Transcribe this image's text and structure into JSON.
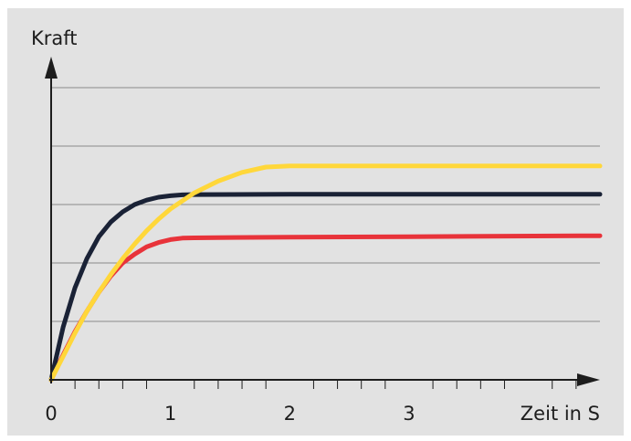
{
  "chart_data": {
    "type": "line",
    "title": "",
    "ylabel": "Kraft",
    "xlabel": "Zeit in S",
    "xlim": [
      0,
      4.6
    ],
    "ylim": [
      0,
      1.0
    ],
    "grid": true,
    "x_ticks": [
      {
        "value": 0,
        "label": "0"
      },
      {
        "value": 1,
        "label": "1"
      },
      {
        "value": 2,
        "label": "2"
      },
      {
        "value": 3,
        "label": "3"
      }
    ],
    "minor_x_ticks": [
      0.2,
      0.4,
      0.6,
      0.8,
      1.2,
      1.4,
      1.6,
      1.8,
      2.2,
      2.4,
      2.6,
      2.8,
      3.2,
      3.4,
      3.6,
      3.8,
      4.2,
      4.4
    ],
    "y_grid": [
      0.2,
      0.4,
      0.6,
      0.8
    ],
    "series": [
      {
        "color": "#e8333a",
        "x": [
          0,
          0.1,
          0.2,
          0.3,
          0.4,
          0.5,
          0.6,
          0.7,
          0.8,
          0.9,
          1.0,
          1.1,
          1.2,
          1.4,
          2.0,
          3.0,
          4.6
        ],
        "y": [
          0,
          0.085,
          0.165,
          0.235,
          0.3,
          0.355,
          0.4,
          0.43,
          0.455,
          0.47,
          0.48,
          0.485,
          0.486,
          0.487,
          0.488,
          0.49,
          0.493
        ]
      },
      {
        "color": "#1a2236",
        "x": [
          0,
          0.1,
          0.2,
          0.3,
          0.4,
          0.5,
          0.6,
          0.7,
          0.8,
          0.9,
          1.0,
          1.1,
          1.2,
          2.0,
          3.0,
          4.6
        ],
        "y": [
          0,
          0.18,
          0.315,
          0.415,
          0.49,
          0.54,
          0.575,
          0.6,
          0.615,
          0.625,
          0.63,
          0.633,
          0.634,
          0.635,
          0.635,
          0.635
        ]
      },
      {
        "color": "#ffd73a",
        "x": [
          0,
          0.1,
          0.2,
          0.3,
          0.4,
          0.5,
          0.6,
          0.7,
          0.8,
          0.9,
          1.0,
          1.2,
          1.4,
          1.6,
          1.8,
          2.0,
          2.5,
          3.0,
          4.6
        ],
        "y": [
          0,
          0.08,
          0.16,
          0.235,
          0.3,
          0.36,
          0.415,
          0.465,
          0.51,
          0.55,
          0.585,
          0.64,
          0.68,
          0.71,
          0.728,
          0.732,
          0.732,
          0.732,
          0.732
        ]
      }
    ]
  }
}
